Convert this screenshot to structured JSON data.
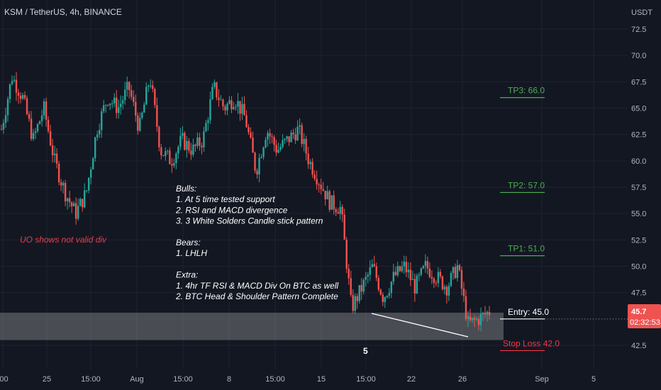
{
  "header": {
    "title": "KSM / TetherUS, 4h, BINANCE"
  },
  "chart_data": {
    "type": "candlestick",
    "title": "KSM / TetherUS, 4h, BINANCE",
    "y_unit": "USDT",
    "ylim": [
      41.0,
      74.0
    ],
    "y_ticks": [
      "72.5",
      "70.0",
      "67.5",
      "65.0",
      "62.5",
      "60.0",
      "57.5",
      "55.0",
      "52.5",
      "50.0",
      "47.5",
      "45.0",
      "42.5"
    ],
    "x_ticks": [
      ":00",
      "25",
      "15:00",
      "Aug",
      "15:00",
      "8",
      "15:00",
      "15",
      "15:00",
      "22",
      "26",
      "Sep",
      "5"
    ],
    "price_path": [
      63,
      68,
      66,
      62,
      65,
      60,
      57,
      55,
      57,
      63,
      66,
      65,
      67,
      63,
      68,
      61,
      60,
      62,
      61,
      62,
      67,
      65,
      66,
      64,
      59,
      63,
      61,
      62,
      63,
      60,
      58,
      56,
      55.5,
      46,
      48,
      50,
      47,
      49,
      50,
      48,
      50,
      49,
      48,
      50,
      44.5,
      45,
      45.7
    ],
    "last_price": "45.7",
    "countdown": "02:32:53",
    "colors": {
      "up": "#26a69a",
      "down": "#ef5350",
      "tp": "#4caf50",
      "stop": "#f23645",
      "background": "#131722"
    },
    "levels": [
      {
        "label": "TP3: 66.0",
        "value": 66.0,
        "color": "#4caf50"
      },
      {
        "label": "TP2: 57.0",
        "value": 57.0,
        "color": "#4caf50"
      },
      {
        "label": "TP1: 51.0",
        "value": 51.0,
        "color": "#4caf50"
      },
      {
        "label": "Entry: 45.0",
        "value": 45.0,
        "color": "#ffffff"
      },
      {
        "label": "Stop Loss 42.0",
        "value": 42.0,
        "color": "#f23645"
      }
    ],
    "support_zone": [
      43.0,
      45.6
    ],
    "annotations": {
      "notes": [
        "Bulls:",
        "1. At 5 time tested support",
        "2. RSI and MACD divergence",
        "3. 3 White Solders Candle stick pattern",
        "",
        "Bears:",
        "1. LHLH",
        "",
        "Extra:",
        "1. 4hr TF RSI & MACD Div On BTC as well",
        "2. BTC Head & Shoulder Pattern Complete"
      ],
      "uo_note": "UO shows not valid div",
      "touch_count": "5"
    }
  }
}
